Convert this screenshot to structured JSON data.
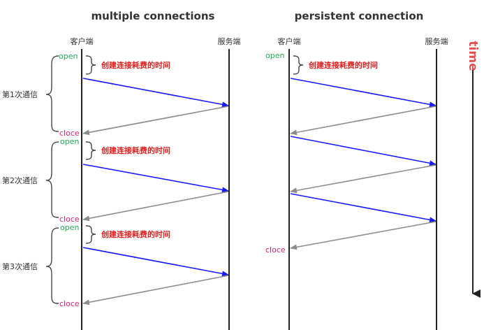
{
  "titles": {
    "multiple": "multiple connections",
    "persistent": "persistent connection"
  },
  "labels": {
    "client": "客户端",
    "server": "服务端",
    "open": "open",
    "close": "cloce",
    "latency": "创建连接耗费的时间",
    "round1": "第1次通信",
    "round2": "第2次通信",
    "round3": "第3次通信",
    "time": "time"
  },
  "colors": {
    "request": "#1a1aff",
    "response": "#8c8c8c",
    "open": "#1faa55",
    "close": "#d6207a",
    "latency": "#e02020",
    "time": "#e64c4c"
  },
  "multiple_connections": {
    "rounds": [
      {
        "label_key": "round1",
        "events": [
          "open",
          "request",
          "response",
          "close"
        ]
      },
      {
        "label_key": "round2",
        "events": [
          "open",
          "request",
          "response",
          "close"
        ]
      },
      {
        "label_key": "round3",
        "events": [
          "open",
          "request",
          "response",
          "close"
        ]
      }
    ]
  },
  "persistent_connection": {
    "events": [
      "open",
      "request",
      "response",
      "request",
      "response",
      "request",
      "response",
      "close"
    ]
  }
}
